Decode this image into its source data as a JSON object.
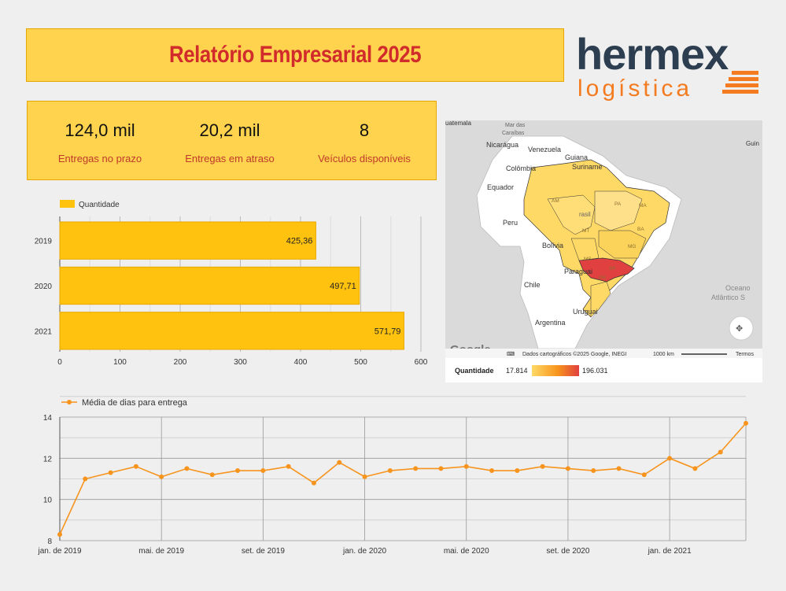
{
  "header": {
    "title": "Relatório Empresarial 2025"
  },
  "logo": {
    "brand": "hermex",
    "sub": "logística"
  },
  "kpis": [
    {
      "value": "124,0 mil",
      "label": "Entregas no prazo"
    },
    {
      "value": "20,2 mil",
      "label": "Entregas em atraso"
    },
    {
      "value": "8",
      "label": "Veículos disponíveis"
    }
  ],
  "colors": {
    "accent": "#ffc20e",
    "kpi_bg": "#ffd34d",
    "title_red": "#d12b2b",
    "line": "#f7941d"
  },
  "bar_chart": {
    "chart_data": {
      "type": "bar",
      "orientation": "horizontal",
      "legend": "Quantidade",
      "categories": [
        "2019",
        "2020",
        "2021"
      ],
      "values": [
        425.36,
        497.71,
        571.79
      ],
      "value_labels": [
        "425,36",
        "497,71",
        "571,79"
      ],
      "xticks": [
        "0",
        "100",
        "200",
        "300",
        "400",
        "500",
        "600"
      ],
      "xlim": [
        0,
        600
      ],
      "grid": true
    }
  },
  "map": {
    "countries": [
      "Venezuela",
      "Guiana",
      "Suriname",
      "Colômbia",
      "Equador",
      "Peru",
      "Bolívia",
      "Paraguai",
      "Chile",
      "Uruguai",
      "Argentina",
      "Nicarágua"
    ],
    "partial_labels": [
      "uatemala",
      "Mar das",
      "Caraíbas",
      "Guin",
      "rasil"
    ],
    "ocean": "Oceano Atlântico S",
    "state_codes": [
      "AM",
      "PA",
      "MT",
      "MS",
      "SP",
      "PR",
      "BA",
      "MG",
      "MA",
      "PI",
      "GO",
      "RS",
      "SC",
      "RO",
      "AC",
      "TO"
    ],
    "google": "Google",
    "attribution": "Dados cartográficos ©2025 Google, INEGI",
    "scale": "1000 km",
    "terms": "Termos",
    "legend_label": "Quantidade",
    "legend_min": "17.814",
    "legend_max": "196.031",
    "highlight_color": "#e04040",
    "fill_color": "#ffd966"
  },
  "line_chart": {
    "chart_data": {
      "type": "line",
      "legend": "Média de dias para entrega",
      "series": [
        {
          "name": "Média de dias para entrega",
          "values": [
            8.3,
            11.0,
            11.3,
            11.6,
            11.1,
            11.5,
            11.2,
            11.4,
            11.4,
            11.6,
            10.8,
            11.8,
            11.1,
            11.4,
            11.5,
            11.5,
            11.6,
            11.4,
            11.4,
            11.6,
            11.5,
            11.4,
            11.5,
            11.2,
            12.0,
            11.5,
            12.3,
            13.7
          ]
        }
      ],
      "x_ticks": [
        "jan. de 2019",
        "mai. de 2019",
        "set. de 2019",
        "jan. de 2020",
        "mai. de 2020",
        "set. de 2020",
        "jan. de 2021"
      ],
      "y_ticks": [
        "8",
        "10",
        "12",
        "14"
      ],
      "ylim": [
        8,
        14
      ],
      "grid": true
    }
  }
}
